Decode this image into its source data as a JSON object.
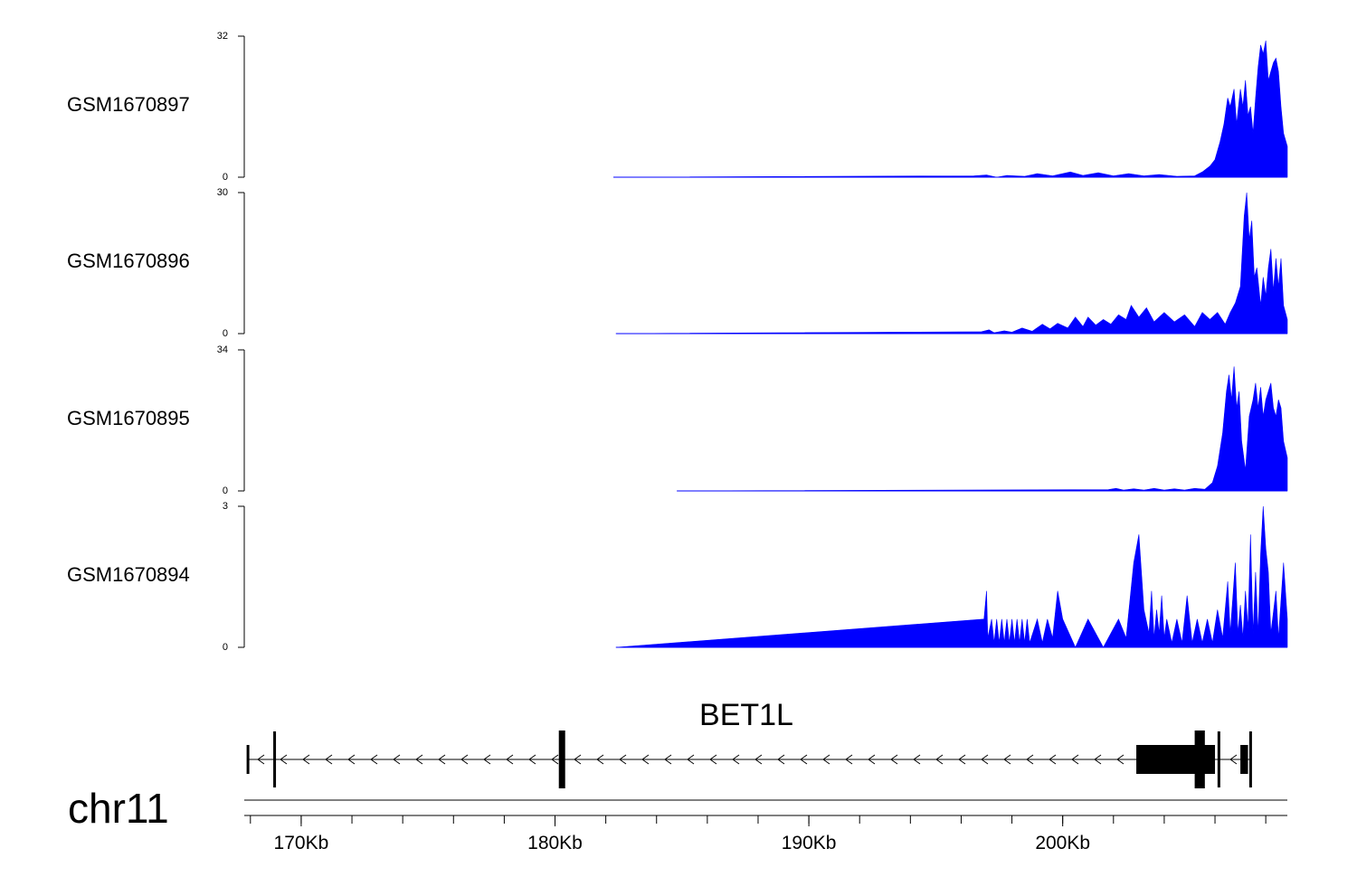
{
  "chart_data": {
    "type": "area",
    "x_unit": "kb",
    "tracks": [
      {
        "name": "GSM1670897",
        "ymax": 32,
        "ymin_label": "0",
        "ymax_label": "32",
        "color": "#0000ff",
        "points": [
          [
            182.3,
            0
          ],
          [
            196.5,
            0.3
          ],
          [
            197.0,
            0.5
          ],
          [
            197.4,
            0
          ],
          [
            197.8,
            0.4
          ],
          [
            198.5,
            0.2
          ],
          [
            199.0,
            0.8
          ],
          [
            199.6,
            0.3
          ],
          [
            200.3,
            1.2
          ],
          [
            200.8,
            0.4
          ],
          [
            201.4,
            1.0
          ],
          [
            202.0,
            0.3
          ],
          [
            202.6,
            0.8
          ],
          [
            203.2,
            0.3
          ],
          [
            203.8,
            0.6
          ],
          [
            204.5,
            0.2
          ],
          [
            205.2,
            0.3
          ],
          [
            205.5,
            1.2
          ],
          [
            205.8,
            2.5
          ],
          [
            206.0,
            4
          ],
          [
            206.2,
            8
          ],
          [
            206.35,
            12
          ],
          [
            206.5,
            18
          ],
          [
            206.6,
            16
          ],
          [
            206.75,
            20
          ],
          [
            206.85,
            12
          ],
          [
            207.0,
            20
          ],
          [
            207.1,
            16
          ],
          [
            207.2,
            22
          ],
          [
            207.3,
            14
          ],
          [
            207.4,
            16
          ],
          [
            207.5,
            10
          ],
          [
            207.6,
            18
          ],
          [
            207.7,
            25
          ],
          [
            207.8,
            30
          ],
          [
            207.9,
            28
          ],
          [
            208.0,
            31
          ],
          [
            208.1,
            22
          ],
          [
            208.2,
            24
          ],
          [
            208.3,
            26
          ],
          [
            208.4,
            27
          ],
          [
            208.5,
            24
          ],
          [
            208.6,
            16
          ],
          [
            208.7,
            10
          ],
          [
            208.85,
            7
          ]
        ]
      },
      {
        "name": "GSM1670896",
        "ymax": 30,
        "ymin_label": "0",
        "ymax_label": "30",
        "color": "#0000ff",
        "points": [
          [
            182.4,
            0
          ],
          [
            196.8,
            0.4
          ],
          [
            197.1,
            0.8
          ],
          [
            197.3,
            0.2
          ],
          [
            197.7,
            0.6
          ],
          [
            198.0,
            0.3
          ],
          [
            198.4,
            1.2
          ],
          [
            198.8,
            0.5
          ],
          [
            199.2,
            2.0
          ],
          [
            199.5,
            1.0
          ],
          [
            199.8,
            2.2
          ],
          [
            200.2,
            1.2
          ],
          [
            200.5,
            3.5
          ],
          [
            200.8,
            1.5
          ],
          [
            201.0,
            3.5
          ],
          [
            201.3,
            1.8
          ],
          [
            201.6,
            3.0
          ],
          [
            201.9,
            2.0
          ],
          [
            202.2,
            4.0
          ],
          [
            202.5,
            3.0
          ],
          [
            202.7,
            6.0
          ],
          [
            203.0,
            3.5
          ],
          [
            203.3,
            5.5
          ],
          [
            203.6,
            2.5
          ],
          [
            204.0,
            4.5
          ],
          [
            204.4,
            2.5
          ],
          [
            204.8,
            4.0
          ],
          [
            205.2,
            1.5
          ],
          [
            205.5,
            4.5
          ],
          [
            205.8,
            3.0
          ],
          [
            206.1,
            4.5
          ],
          [
            206.4,
            2.0
          ],
          [
            206.6,
            4.5
          ],
          [
            206.8,
            6.5
          ],
          [
            207.0,
            10
          ],
          [
            207.15,
            25
          ],
          [
            207.25,
            30
          ],
          [
            207.35,
            20
          ],
          [
            207.45,
            24
          ],
          [
            207.55,
            12
          ],
          [
            207.65,
            14
          ],
          [
            207.8,
            6
          ],
          [
            207.9,
            12
          ],
          [
            208.0,
            8
          ],
          [
            208.1,
            14
          ],
          [
            208.2,
            18
          ],
          [
            208.3,
            9
          ],
          [
            208.4,
            16
          ],
          [
            208.5,
            10
          ],
          [
            208.6,
            16
          ],
          [
            208.7,
            6
          ],
          [
            208.85,
            3
          ]
        ]
      },
      {
        "name": "GSM1670895",
        "ymax": 34,
        "ymin_label": "0",
        "ymax_label": "34",
        "color": "#0000ff",
        "points": [
          [
            184.8,
            0
          ],
          [
            201.8,
            0.3
          ],
          [
            202.1,
            0.6
          ],
          [
            202.4,
            0.2
          ],
          [
            202.8,
            0.5
          ],
          [
            203.2,
            0.2
          ],
          [
            203.6,
            0.6
          ],
          [
            204.0,
            0.2
          ],
          [
            204.4,
            0.5
          ],
          [
            204.8,
            0.2
          ],
          [
            205.2,
            0.6
          ],
          [
            205.6,
            0.4
          ],
          [
            205.9,
            2
          ],
          [
            206.1,
            6
          ],
          [
            206.3,
            14
          ],
          [
            206.45,
            24
          ],
          [
            206.55,
            28
          ],
          [
            206.65,
            22
          ],
          [
            206.75,
            30
          ],
          [
            206.85,
            20
          ],
          [
            206.95,
            24
          ],
          [
            207.05,
            12
          ],
          [
            207.2,
            5
          ],
          [
            207.35,
            18
          ],
          [
            207.5,
            22
          ],
          [
            207.6,
            26
          ],
          [
            207.7,
            20
          ],
          [
            207.8,
            25
          ],
          [
            207.9,
            18
          ],
          [
            208.0,
            22
          ],
          [
            208.1,
            24
          ],
          [
            208.2,
            26
          ],
          [
            208.3,
            20
          ],
          [
            208.4,
            18
          ],
          [
            208.5,
            22
          ],
          [
            208.6,
            20
          ],
          [
            208.7,
            12
          ],
          [
            208.85,
            8
          ]
        ]
      },
      {
        "name": "GSM1670894",
        "ymax": 3,
        "ymin_label": "0",
        "ymax_label": "3",
        "color": "#0000ff",
        "points": [
          [
            182.4,
            0
          ],
          [
            196.9,
            0.6
          ],
          [
            197.0,
            1.2
          ],
          [
            197.05,
            0.2
          ],
          [
            197.2,
            0.6
          ],
          [
            197.3,
            0.1
          ],
          [
            197.4,
            0.6
          ],
          [
            197.5,
            0.1
          ],
          [
            197.6,
            0.6
          ],
          [
            197.7,
            0.1
          ],
          [
            197.8,
            0.6
          ],
          [
            197.9,
            0.1
          ],
          [
            198.0,
            0.6
          ],
          [
            198.1,
            0.1
          ],
          [
            198.2,
            0.6
          ],
          [
            198.3,
            0.1
          ],
          [
            198.4,
            0.6
          ],
          [
            198.5,
            0.1
          ],
          [
            198.6,
            0.6
          ],
          [
            198.7,
            0.1
          ],
          [
            199.0,
            0.6
          ],
          [
            199.2,
            0.1
          ],
          [
            199.4,
            0.6
          ],
          [
            199.6,
            0.2
          ],
          [
            199.8,
            1.2
          ],
          [
            200.0,
            0.6
          ],
          [
            200.5,
            0
          ],
          [
            201.0,
            0.6
          ],
          [
            201.6,
            0
          ],
          [
            202.2,
            0.6
          ],
          [
            202.5,
            0.2
          ],
          [
            202.8,
            1.8
          ],
          [
            203.0,
            2.4
          ],
          [
            203.2,
            0.8
          ],
          [
            203.4,
            0.3
          ],
          [
            203.5,
            1.2
          ],
          [
            203.6,
            0.2
          ],
          [
            203.7,
            0.8
          ],
          [
            203.8,
            0.3
          ],
          [
            203.9,
            1.1
          ],
          [
            204.0,
            0.2
          ],
          [
            204.1,
            0.6
          ],
          [
            204.3,
            0.1
          ],
          [
            204.5,
            0.6
          ],
          [
            204.7,
            0.1
          ],
          [
            204.9,
            1.1
          ],
          [
            205.1,
            0.1
          ],
          [
            205.3,
            0.6
          ],
          [
            205.5,
            0.1
          ],
          [
            205.7,
            0.6
          ],
          [
            205.9,
            0.1
          ],
          [
            206.1,
            0.8
          ],
          [
            206.3,
            0.2
          ],
          [
            206.5,
            1.4
          ],
          [
            206.6,
            0.3
          ],
          [
            206.8,
            1.8
          ],
          [
            206.9,
            0.3
          ],
          [
            207.0,
            0.9
          ],
          [
            207.1,
            0.2
          ],
          [
            207.2,
            1.2
          ],
          [
            207.3,
            0.4
          ],
          [
            207.4,
            2.4
          ],
          [
            207.5,
            0.3
          ],
          [
            207.6,
            1.6
          ],
          [
            207.7,
            0.3
          ],
          [
            207.8,
            2.0
          ],
          [
            207.9,
            3.0
          ],
          [
            208.0,
            2.1
          ],
          [
            208.1,
            1.6
          ],
          [
            208.2,
            0.3
          ],
          [
            208.4,
            1.2
          ],
          [
            208.5,
            0.2
          ],
          [
            208.7,
            1.8
          ],
          [
            208.85,
            0.6
          ]
        ]
      }
    ],
    "gene": {
      "name": "BET1L",
      "strand": "-",
      "intron_extent": [
        167.9,
        207.4
      ],
      "exons": [
        {
          "start": 167.85,
          "end": 167.95,
          "kind": "thin"
        },
        {
          "start": 168.9,
          "end": 169.0,
          "kind": "thin"
        },
        {
          "start": 180.15,
          "end": 180.35,
          "kind": "thick"
        },
        {
          "start": 202.9,
          "end": 206.0,
          "kind": "block"
        },
        {
          "start": 205.2,
          "end": 205.6,
          "kind": "tall"
        },
        {
          "start": 206.1,
          "end": 206.2,
          "kind": "thin"
        },
        {
          "start": 207.0,
          "end": 207.3,
          "kind": "block"
        },
        {
          "start": 207.35,
          "end": 207.45,
          "kind": "thin"
        }
      ]
    },
    "axis": {
      "chrom": "chr11",
      "xlim": [
        167.9,
        208.85
      ],
      "major_ticks": [
        170,
        180,
        190,
        200
      ],
      "tick_labels": [
        "170Kb",
        "180Kb",
        "190Kb",
        "200Kb"
      ],
      "minor_step": 2
    }
  }
}
